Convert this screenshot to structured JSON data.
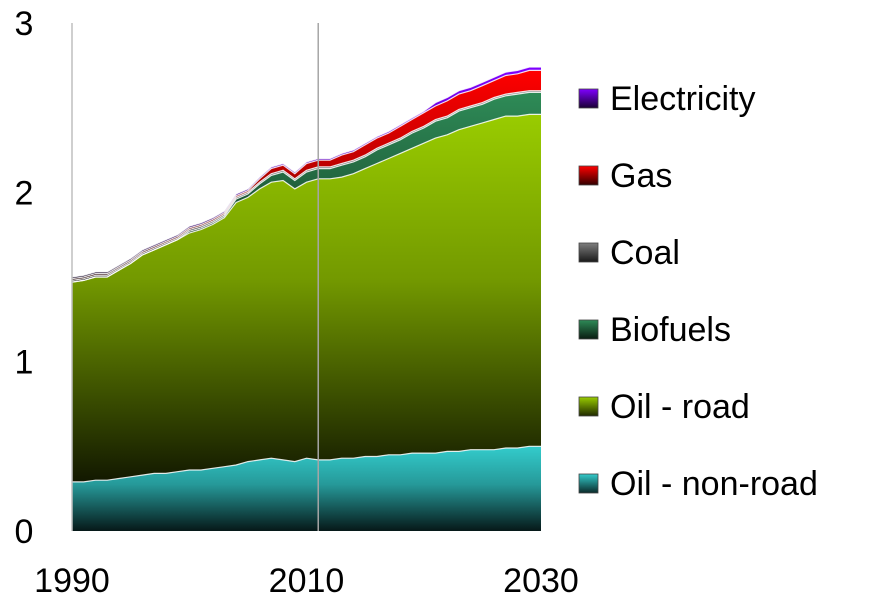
{
  "chart_data": {
    "type": "area",
    "stacked": true,
    "title": "",
    "xlabel": "",
    "ylabel": "",
    "xlim": [
      1990,
      2030
    ],
    "ylim": [
      0,
      3
    ],
    "x_ticks": [
      "1990",
      "2010",
      "2030"
    ],
    "y_ticks": [
      "0",
      "1",
      "2",
      "3"
    ],
    "vertical_marker_x": 2011,
    "grid": false,
    "legend_position": "right",
    "x": [
      1990,
      1991,
      1992,
      1993,
      1994,
      1995,
      1996,
      1997,
      1998,
      1999,
      2000,
      2001,
      2002,
      2003,
      2004,
      2005,
      2006,
      2007,
      2008,
      2009,
      2010,
      2011,
      2012,
      2013,
      2014,
      2015,
      2016,
      2017,
      2018,
      2019,
      2020,
      2021,
      2022,
      2023,
      2024,
      2025,
      2026,
      2027,
      2028,
      2029,
      2030
    ],
    "series": [
      {
        "name": "Oil - non-road",
        "color": "#33CCCC",
        "values": [
          0.29,
          0.29,
          0.3,
          0.3,
          0.31,
          0.32,
          0.33,
          0.34,
          0.34,
          0.35,
          0.36,
          0.36,
          0.37,
          0.38,
          0.39,
          0.41,
          0.42,
          0.43,
          0.42,
          0.41,
          0.43,
          0.42,
          0.42,
          0.43,
          0.43,
          0.44,
          0.44,
          0.45,
          0.45,
          0.46,
          0.46,
          0.46,
          0.47,
          0.47,
          0.48,
          0.48,
          0.48,
          0.49,
          0.49,
          0.5,
          0.5
        ]
      },
      {
        "name": "Oil - road",
        "color": "#99CC00",
        "values": [
          1.18,
          1.19,
          1.2,
          1.2,
          1.23,
          1.26,
          1.3,
          1.32,
          1.35,
          1.37,
          1.4,
          1.42,
          1.44,
          1.47,
          1.55,
          1.56,
          1.6,
          1.63,
          1.65,
          1.61,
          1.63,
          1.66,
          1.66,
          1.66,
          1.68,
          1.7,
          1.73,
          1.75,
          1.78,
          1.8,
          1.83,
          1.86,
          1.87,
          1.9,
          1.91,
          1.93,
          1.95,
          1.96,
          1.96,
          1.96,
          1.96
        ]
      },
      {
        "name": "Biofuels",
        "color": "#2E8B57",
        "values": [
          0.0,
          0.0,
          0.0,
          0.0,
          0.0,
          0.0,
          0.0,
          0.0,
          0.0,
          0.0,
          0.01,
          0.01,
          0.01,
          0.01,
          0.02,
          0.02,
          0.03,
          0.04,
          0.05,
          0.05,
          0.06,
          0.06,
          0.06,
          0.07,
          0.07,
          0.07,
          0.08,
          0.08,
          0.08,
          0.09,
          0.09,
          0.1,
          0.1,
          0.11,
          0.11,
          0.11,
          0.12,
          0.12,
          0.13,
          0.13,
          0.13
        ]
      },
      {
        "name": "Coal",
        "color": "#7F7F7F",
        "values": [
          0.01,
          0.01,
          0.01,
          0.01,
          0.01,
          0.01,
          0.01,
          0.01,
          0.01,
          0.01,
          0.01,
          0.01,
          0.01,
          0.01,
          0.01,
          0.01,
          0.01,
          0.01,
          0.01,
          0.01,
          0.01,
          0.01,
          0.01,
          0.01,
          0.01,
          0.01,
          0.01,
          0.01,
          0.01,
          0.01,
          0.01,
          0.01,
          0.01,
          0.01,
          0.01,
          0.01,
          0.01,
          0.01,
          0.01,
          0.01,
          0.01
        ]
      },
      {
        "name": "Gas",
        "color": "#FF0000",
        "values": [
          0.01,
          0.01,
          0.01,
          0.01,
          0.01,
          0.01,
          0.01,
          0.01,
          0.01,
          0.01,
          0.01,
          0.01,
          0.01,
          0.01,
          0.01,
          0.01,
          0.02,
          0.03,
          0.03,
          0.03,
          0.04,
          0.04,
          0.04,
          0.05,
          0.05,
          0.06,
          0.06,
          0.06,
          0.07,
          0.07,
          0.08,
          0.08,
          0.09,
          0.09,
          0.09,
          0.1,
          0.1,
          0.11,
          0.11,
          0.12,
          0.12
        ]
      },
      {
        "name": "Electricity",
        "color": "#7F00FF",
        "values": [
          0.01,
          0.01,
          0.01,
          0.01,
          0.01,
          0.01,
          0.01,
          0.01,
          0.01,
          0.01,
          0.01,
          0.01,
          0.01,
          0.01,
          0.01,
          0.01,
          0.01,
          0.01,
          0.01,
          0.01,
          0.01,
          0.01,
          0.01,
          0.01,
          0.01,
          0.01,
          0.01,
          0.01,
          0.01,
          0.01,
          0.01,
          0.02,
          0.02,
          0.02,
          0.02,
          0.02,
          0.02,
          0.02,
          0.02,
          0.02,
          0.02
        ]
      }
    ],
    "legend_order": [
      "Electricity",
      "Gas",
      "Coal",
      "Biofuels",
      "Oil - road",
      "Oil - non-road"
    ]
  }
}
